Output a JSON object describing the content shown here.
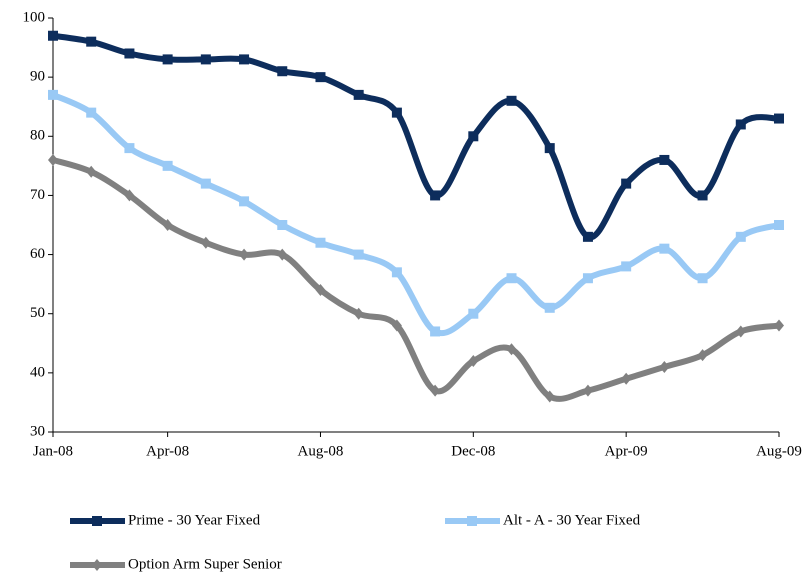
{
  "chart_data": {
    "type": "line",
    "categories": [
      "Jan-08",
      null,
      null,
      "Apr-08",
      null,
      null,
      null,
      "Aug-08",
      null,
      null,
      null,
      "Dec-08",
      null,
      null,
      null,
      "Apr-09",
      null,
      null,
      null,
      "Aug-09"
    ],
    "series": [
      {
        "name": "Prime - 30 Year Fixed",
        "color": "#0d2d5c",
        "marker": "square",
        "values": [
          97,
          96,
          94,
          93,
          93,
          93,
          91,
          90,
          87,
          84,
          70,
          80,
          86,
          78,
          63,
          72,
          76,
          70,
          82,
          83
        ]
      },
      {
        "name": "Alt - A - 30 Year Fixed",
        "color": "#99c9f5",
        "marker": "square",
        "values": [
          87,
          84,
          78,
          75,
          72,
          69,
          65,
          62,
          60,
          57,
          47,
          50,
          56,
          51,
          56,
          58,
          61,
          56,
          63,
          65
        ]
      },
      {
        "name": "Option Arm Super Senior",
        "color": "#808080",
        "marker": "diamond",
        "values": [
          76,
          74,
          70,
          65,
          62,
          60,
          60,
          54,
          50,
          48,
          37,
          42,
          44,
          36,
          37,
          39,
          41,
          43,
          47,
          48
        ]
      }
    ],
    "ylim": [
      30,
      100
    ],
    "yticks": [
      30,
      40,
      50,
      60,
      70,
      80,
      90,
      100
    ],
    "grid": false,
    "legend": "bottom"
  }
}
